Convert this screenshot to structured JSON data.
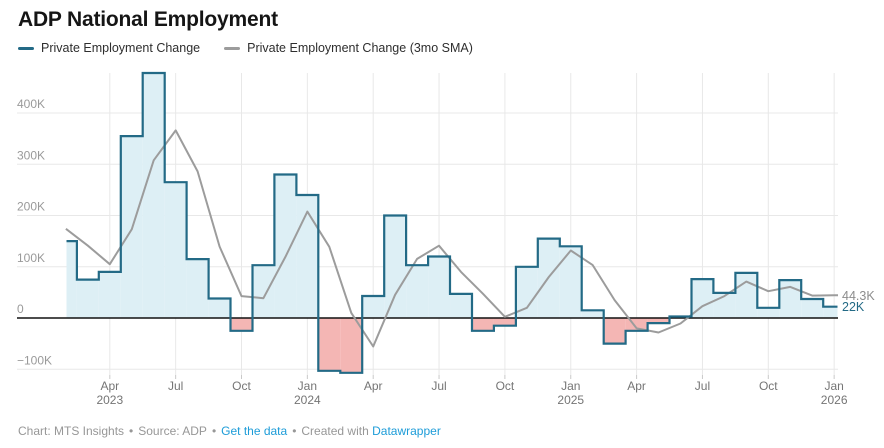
{
  "title": "ADP National Employment",
  "legend": [
    {
      "label": "Private Employment Change",
      "color": "#236a86"
    },
    {
      "label": "Private Employment Change (3mo SMA)",
      "color": "#9c9c9c"
    }
  ],
  "chart_data": {
    "type": "area",
    "subtype": "step-area with 3-month moving average line",
    "unit": "thousands of jobs",
    "x": [
      "Feb 2023",
      "Mar 2023",
      "Apr 2023",
      "May 2023",
      "Jun 2023",
      "Jul 2023",
      "Aug 2023",
      "Sep 2023",
      "Oct 2023",
      "Nov 2023",
      "Dec 2023",
      "Jan 2024",
      "Feb 2024",
      "Mar 2024",
      "Apr 2024",
      "May 2024",
      "Jun 2024",
      "Jul 2024",
      "Aug 2024",
      "Sep 2024",
      "Oct 2024",
      "Nov 2024",
      "Dec 2024",
      "Jan 2025",
      "Feb 2025",
      "Mar 2025",
      "Apr 2025",
      "May 2025",
      "Jun 2025",
      "Jul 2025",
      "Aug 2025",
      "Sep 2025",
      "Oct 2025",
      "Nov 2025",
      "Dec 2025",
      "Jan 2026"
    ],
    "series": [
      {
        "name": "Private Employment Change",
        "style": "step-area",
        "values": [
          150,
          75,
          90,
          355,
          478,
          265,
          115,
          38,
          -25,
          103,
          280,
          240,
          -103,
          -107,
          43,
          200,
          103,
          120,
          47,
          -25,
          -15,
          100,
          155,
          140,
          15,
          -50,
          -25,
          -10,
          3,
          76,
          49,
          88,
          20,
          74,
          37,
          22
        ]
      },
      {
        "name": "Private Employment Change (3mo SMA)",
        "style": "line",
        "values": [
          174,
          141,
          105,
          173.3,
          307.7,
          366,
          286,
          139.3,
          42.7,
          38.7,
          119.3,
          207.7,
          139,
          10,
          -55.7,
          45.3,
          115.3,
          141,
          90,
          47.3,
          2.3,
          20,
          80,
          131.7,
          103.3,
          35,
          -20,
          -28.3,
          -10.7,
          23,
          42.7,
          71,
          52.3,
          60.7,
          43.7,
          44.3
        ]
      }
    ],
    "title": "ADP National Employment",
    "xlabel": "",
    "ylabel": "",
    "ylim": [
      -110,
      480
    ],
    "grid": "on",
    "legend_position": "top",
    "y_ticks": [
      {
        "v": 400,
        "label": "400K"
      },
      {
        "v": 300,
        "label": "300K"
      },
      {
        "v": 200,
        "label": "200K"
      },
      {
        "v": 100,
        "label": "100K"
      },
      {
        "v": 0,
        "label": "0"
      },
      {
        "v": -100,
        "label": "−100K"
      }
    ],
    "x_ticks": [
      {
        "i": 2,
        "month": "Apr",
        "year": "2023"
      },
      {
        "i": 5,
        "month": "Jul"
      },
      {
        "i": 8,
        "month": "Oct"
      },
      {
        "i": 11,
        "month": "Jan",
        "year": "2024"
      },
      {
        "i": 14,
        "month": "Apr"
      },
      {
        "i": 17,
        "month": "Jul"
      },
      {
        "i": 20,
        "month": "Oct"
      },
      {
        "i": 23,
        "month": "Jan",
        "year": "2025"
      },
      {
        "i": 26,
        "month": "Apr"
      },
      {
        "i": 29,
        "month": "Jul"
      },
      {
        "i": 32,
        "month": "Oct"
      },
      {
        "i": 35,
        "month": "Jan",
        "year": "2026"
      }
    ],
    "end_labels": [
      {
        "text": "44.3K",
        "value": 44.3,
        "color": "#8c8c8c",
        "series": "Private Employment Change (3mo SMA)"
      },
      {
        "text": "22K",
        "value": 22,
        "color": "#236a86",
        "series": "Private Employment Change"
      }
    ],
    "colors": {
      "step_line": "#236a86",
      "area_positive": "#ddeff5",
      "area_negative": "#f4b6b4",
      "sma_line": "#9c9c9c",
      "grid": "#e8e8e8",
      "tick_mark": "#c9c9c9",
      "zero_axis": "#111111",
      "y_axis_text": "#9a9a9a",
      "x_axis_text": "#757575"
    }
  },
  "footer": {
    "chart_credit": "Chart: MTS Insights",
    "source_label": "Source: ADP",
    "get_data_label": "Get the data",
    "created_with": "Created with",
    "datawrapper_label": "Datawrapper",
    "separator": "•"
  }
}
